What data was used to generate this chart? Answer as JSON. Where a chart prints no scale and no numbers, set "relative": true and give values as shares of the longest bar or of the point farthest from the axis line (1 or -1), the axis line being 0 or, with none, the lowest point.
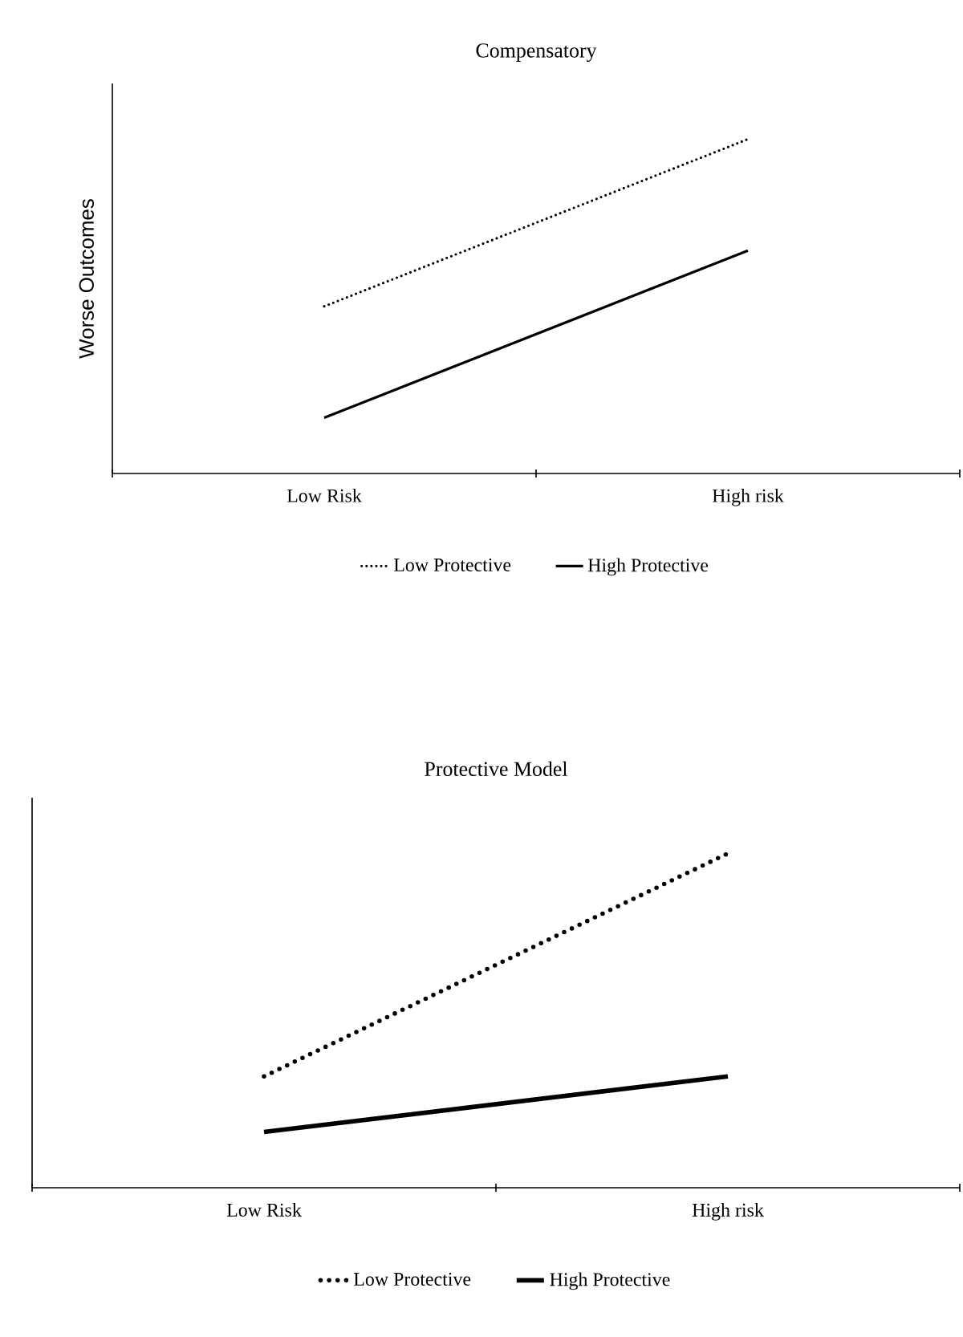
{
  "chart_data": [
    {
      "type": "line",
      "title": "Compensatory",
      "ylabel": "Worse Outcomes",
      "categories": [
        "Low Risk",
        "High risk"
      ],
      "relative": true,
      "legend": "bottom",
      "series": [
        {
          "name": "Low Protective",
          "color": "#000000",
          "line_style": "dotted",
          "values": [
            0.5,
            1.0
          ]
        },
        {
          "name": "High Protective",
          "color": "#000000",
          "line_style": "solid",
          "values": [
            0.1667,
            0.6667
          ]
        }
      ]
    },
    {
      "type": "line",
      "title": "Protective Model",
      "categories": [
        "Low Risk",
        "High risk"
      ],
      "relative": true,
      "legend": "bottom",
      "series": [
        {
          "name": "Low Protective",
          "color": "#000000",
          "line_style": "dotted",
          "values": [
            0.333,
            1.0
          ]
        },
        {
          "name": "High Protective",
          "color": "#000000",
          "line_style": "solid",
          "values": [
            0.1667,
            0.333
          ]
        }
      ]
    }
  ]
}
